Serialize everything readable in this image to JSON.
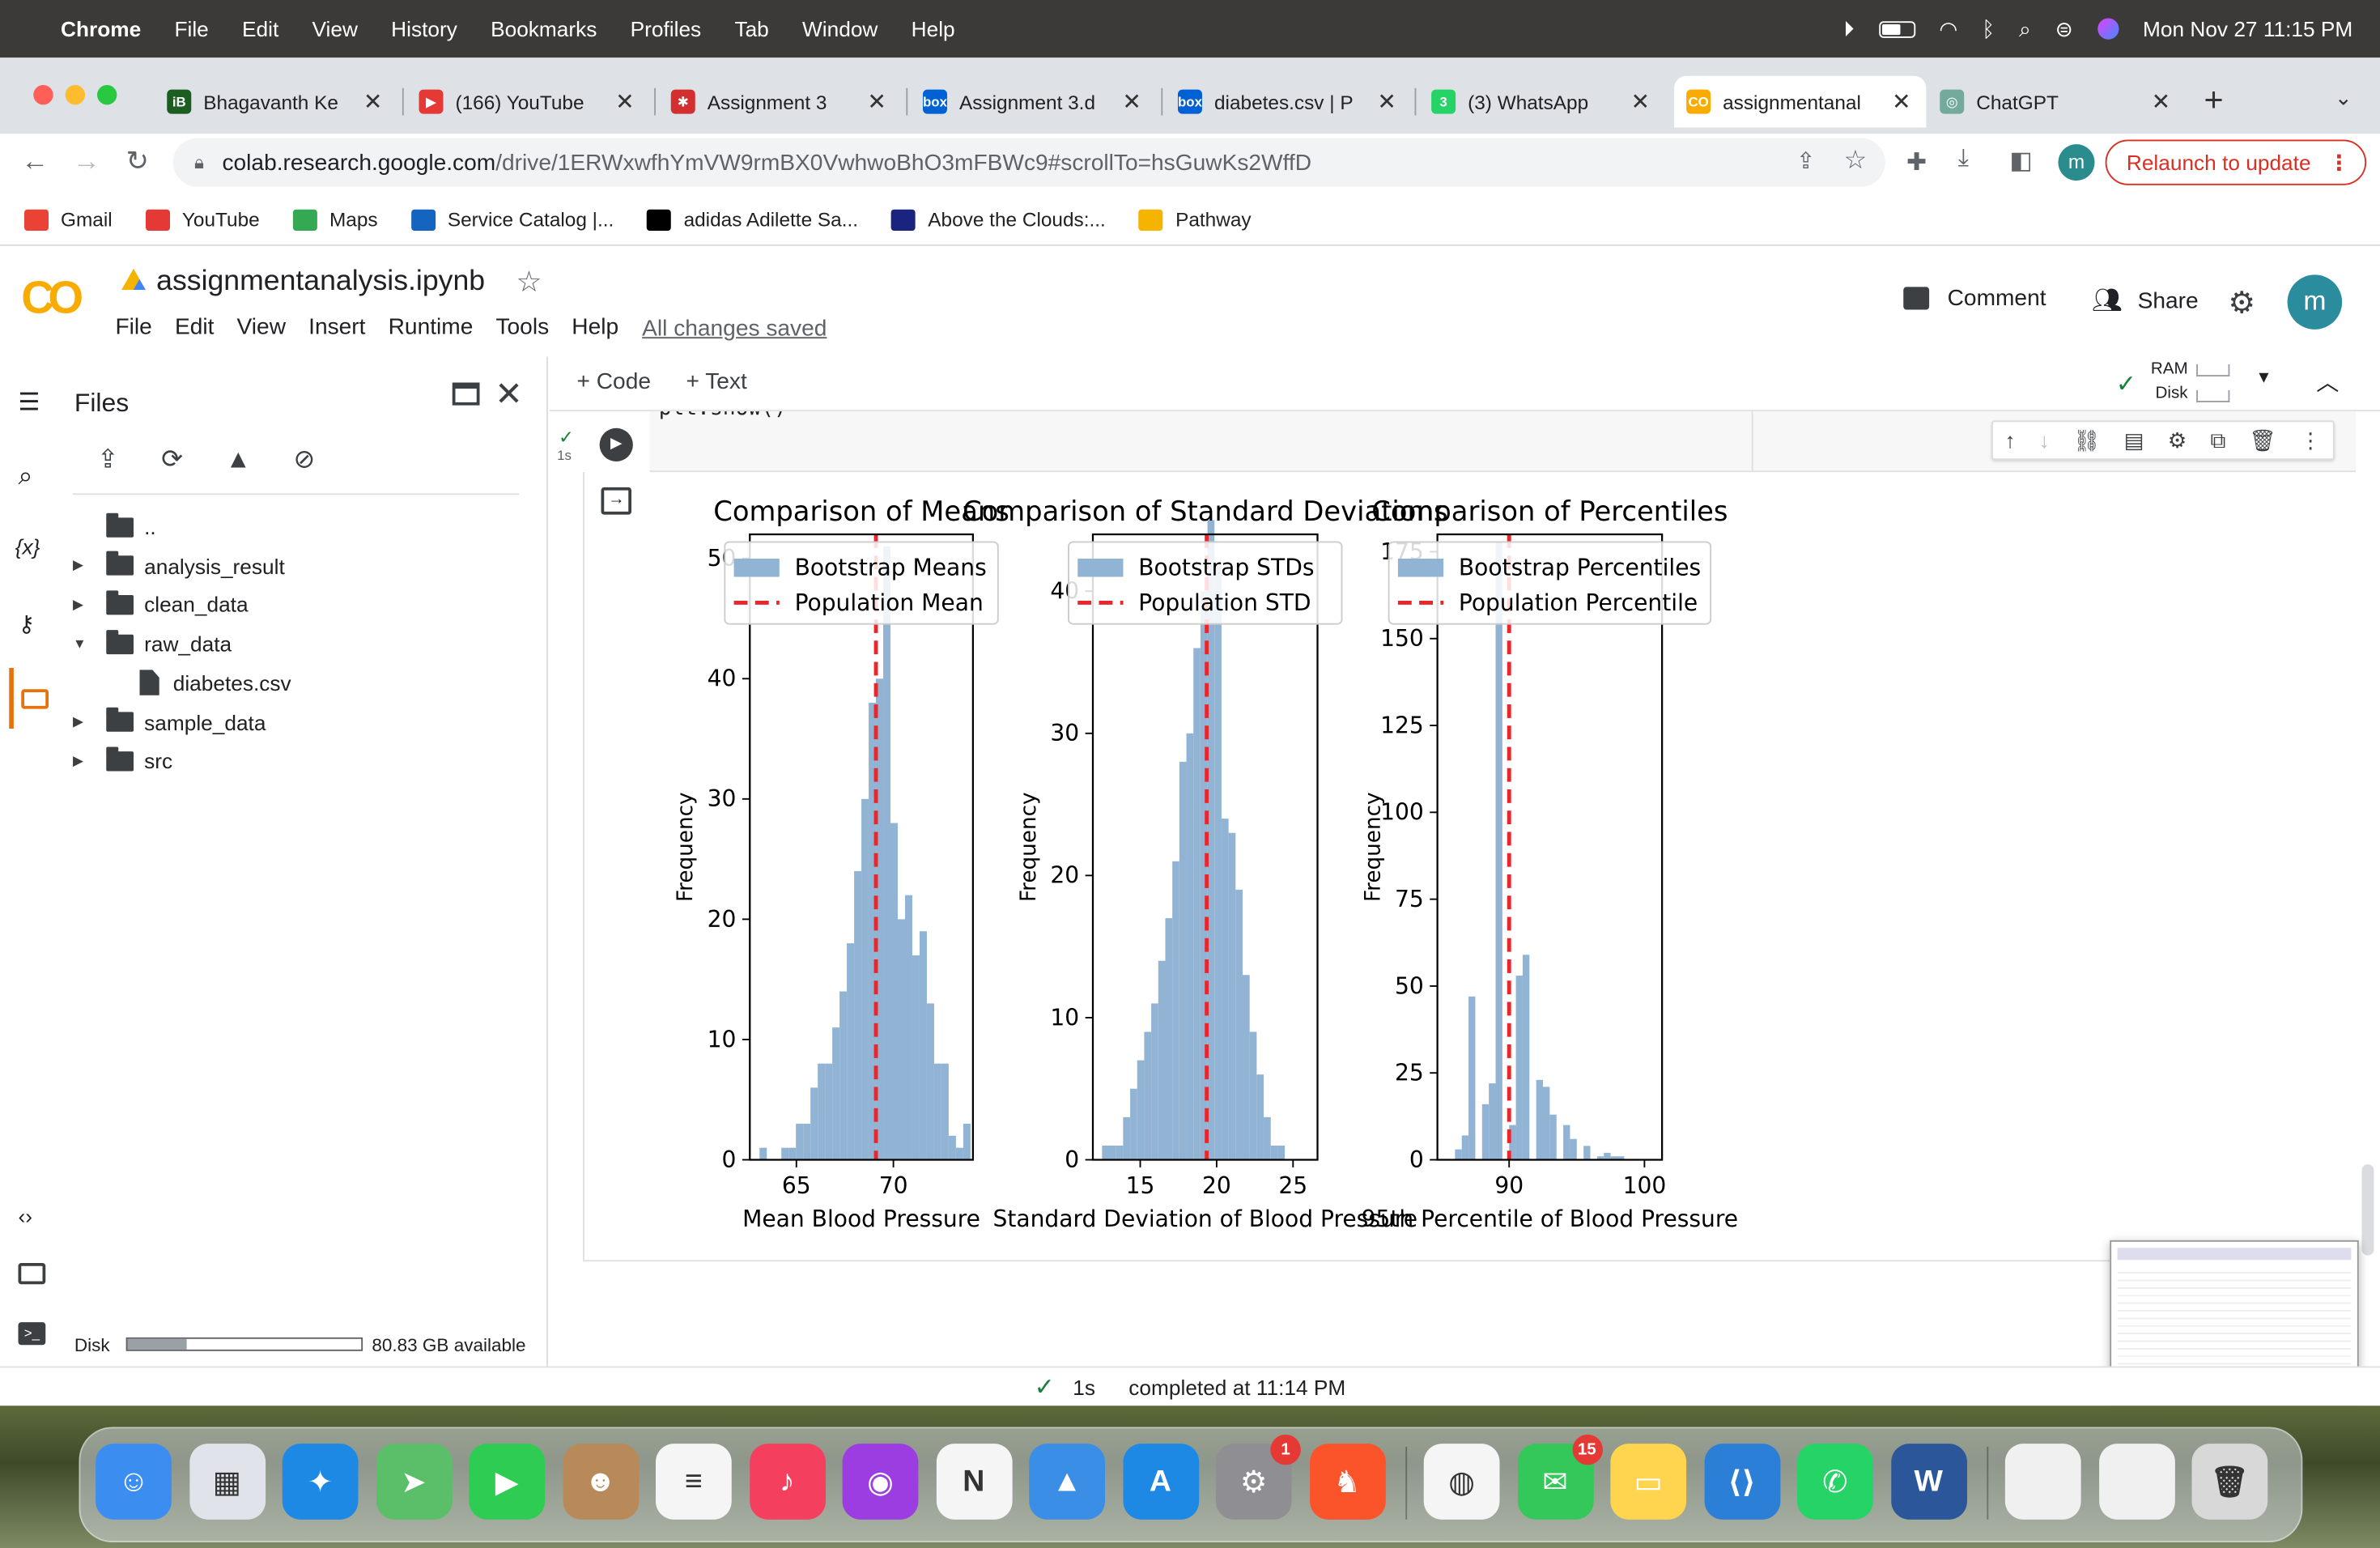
{
  "menubar": {
    "app": "Chrome",
    "items": [
      "File",
      "Edit",
      "View",
      "History",
      "Bookmarks",
      "Profiles",
      "Tab",
      "Window",
      "Help"
    ],
    "datetime": "Mon Nov 27  11:15 PM"
  },
  "tabs": [
    {
      "label": "Bhagavanth Ke",
      "color": "#1b5e20",
      "glyph": "iB"
    },
    {
      "label": "(166) YouTube",
      "color": "#e53935",
      "glyph": "▶"
    },
    {
      "label": "Assignment 3",
      "color": "#d32f2f",
      "glyph": "✱"
    },
    {
      "label": "Assignment 3.d",
      "color": "#0061d5",
      "glyph": "box"
    },
    {
      "label": "diabetes.csv | P",
      "color": "#0061d5",
      "glyph": "box"
    },
    {
      "label": "(3) WhatsApp",
      "color": "#25d366",
      "glyph": "3"
    },
    {
      "label": "assignmentanal",
      "color": "#f9ab00",
      "glyph": "CO"
    },
    {
      "label": "ChatGPT",
      "color": "#74aa9c",
      "glyph": "◎"
    }
  ],
  "address": {
    "host": "colab.research.google.com",
    "path": "/drive/1ERWxwfhYmVW9rmBX0VwhwoBhO3mFBWc9#scrollTo=hsGuwKs2WffD",
    "relaunch": "Relaunch to update",
    "avatar": "m"
  },
  "bookmarks": [
    {
      "label": "Gmail",
      "color": "#ea4335"
    },
    {
      "label": "YouTube",
      "color": "#e53935"
    },
    {
      "label": "Maps",
      "color": "#34a853"
    },
    {
      "label": "Service Catalog |...",
      "color": "#1565c0"
    },
    {
      "label": "adidas Adilette Sa...",
      "color": "#000000"
    },
    {
      "label": "Above the Clouds:...",
      "color": "#1a237e"
    },
    {
      "label": "Pathway",
      "color": "#f4b400"
    }
  ],
  "colab": {
    "title": "assignmentanalysis.ipynb",
    "menu": [
      "File",
      "Edit",
      "View",
      "Insert",
      "Runtime",
      "Tools",
      "Help"
    ],
    "saved": "All changes saved",
    "comment": "Comment",
    "share": "Share",
    "avatar": "m",
    "add_code": "+ Code",
    "add_text": "+ Text",
    "ram": "RAM",
    "disk": "Disk",
    "exec_time": "1s",
    "cell_code_fragment": "plt.show()"
  },
  "files": {
    "title": "Files",
    "tree": [
      {
        "name": "..",
        "type": "up",
        "depth": 0
      },
      {
        "name": "analysis_result",
        "type": "folder",
        "depth": 0,
        "open": false
      },
      {
        "name": "clean_data",
        "type": "folder",
        "depth": 0,
        "open": false
      },
      {
        "name": "raw_data",
        "type": "folder",
        "depth": 0,
        "open": true
      },
      {
        "name": "diabetes.csv",
        "type": "file",
        "depth": 1
      },
      {
        "name": "sample_data",
        "type": "folder",
        "depth": 0,
        "open": false
      },
      {
        "name": "src",
        "type": "folder",
        "depth": 0,
        "open": false
      }
    ],
    "disk_label": "Disk",
    "disk_available": "80.83 GB available",
    "disk_fraction": 0.25
  },
  "status": {
    "time": "1s",
    "completed": "completed at 11:14 PM"
  },
  "chart_data": [
    {
      "type": "bar",
      "title": "Comparison of Means",
      "xlabel": "Mean Blood Pressure",
      "ylabel": "Frequency",
      "xlim": [
        62.6,
        74.1
      ],
      "ylim": [
        0,
        52
      ],
      "xticks": [
        65,
        70
      ],
      "yticks": [
        0,
        10,
        20,
        30,
        40,
        50
      ],
      "bin_start": 63.1,
      "bin_width": 0.375,
      "values": [
        1,
        0,
        0,
        1,
        1,
        3,
        3,
        6,
        8,
        8,
        11,
        14,
        18,
        24,
        30,
        38,
        40,
        51,
        28,
        20,
        22,
        17,
        19,
        13,
        8,
        8,
        2,
        1,
        3,
        0
      ],
      "reference": {
        "name": "Population Mean",
        "value": 69.1
      },
      "legend": [
        "Bootstrap Means",
        "Population Mean"
      ],
      "legend_position": "upper center",
      "color": "#92b4d4",
      "ref_color": "#e8262b"
    },
    {
      "type": "bar",
      "title": "Comparison of Standard Deviations",
      "xlabel": "Standard Deviation of Blood Pressure",
      "ylabel": "Frequency",
      "xlim": [
        11.9,
        26.6
      ],
      "ylim": [
        0,
        44
      ],
      "xticks": [
        15,
        20,
        25
      ],
      "yticks": [
        0,
        10,
        20,
        30,
        40
      ],
      "bin_start": 12.5,
      "bin_width": 0.46,
      "values": [
        1,
        1,
        1,
        3,
        5,
        7,
        9,
        11,
        14,
        17,
        21,
        28,
        30,
        36,
        40,
        45,
        42,
        24,
        23,
        19,
        13,
        9,
        6,
        3,
        1,
        1
      ],
      "reference": {
        "name": "Population STD",
        "value": 19.35
      },
      "legend": [
        "Bootstrap STDs",
        "Population STD"
      ],
      "legend_position": "upper center",
      "color": "#92b4d4",
      "ref_color": "#e8262b"
    },
    {
      "type": "bar",
      "title": "Comparison of Percentiles",
      "xlabel": "95th Percentile of Blood Pressure",
      "ylabel": "Frequency",
      "xlim": [
        84.7,
        101.3
      ],
      "ylim": [
        0,
        180
      ],
      "xticks": [
        90,
        100
      ],
      "yticks": [
        0,
        25,
        50,
        75,
        100,
        125,
        150,
        175
      ],
      "bin_start": 86.0,
      "bin_width": 0.5,
      "values": [
        3,
        7,
        47,
        0,
        16,
        22,
        178,
        0,
        10,
        53,
        59,
        0,
        23,
        21,
        13,
        0,
        10,
        6,
        0,
        4,
        0,
        1,
        2,
        1,
        1
      ],
      "reference": {
        "name": "Population Percentile",
        "value": 90.0
      },
      "legend": [
        "Bootstrap Percentiles",
        "Population Percentile"
      ],
      "legend_position": "upper center",
      "color": "#92b4d4",
      "ref_color": "#e8262b"
    }
  ],
  "dock": [
    {
      "name": "finder",
      "color": "#3b8ef0",
      "glyph": "☺"
    },
    {
      "name": "launchpad",
      "color": "#e0e4ea",
      "glyph": "▦"
    },
    {
      "name": "safari",
      "color": "#1e88e5",
      "glyph": "✦"
    },
    {
      "name": "maps",
      "color": "#5bbf6a",
      "glyph": "➤"
    },
    {
      "name": "facetime",
      "color": "#2ecc52",
      "glyph": "▶"
    },
    {
      "name": "contacts",
      "color": "#b88a5a",
      "glyph": "☻"
    },
    {
      "name": "reminders",
      "color": "#f5f5f5",
      "glyph": "≡"
    },
    {
      "name": "music",
      "color": "#f43f5e",
      "glyph": "♪"
    },
    {
      "name": "podcasts",
      "color": "#9b3de0",
      "glyph": "◉"
    },
    {
      "name": "news",
      "color": "#f5f5f5",
      "glyph": "N"
    },
    {
      "name": "keynote",
      "color": "#3a8ee6",
      "glyph": "▲"
    },
    {
      "name": "app-store",
      "color": "#1e88e5",
      "glyph": "A"
    },
    {
      "name": "system-settings",
      "color": "#8e8e93",
      "glyph": "⚙",
      "badge": "1"
    },
    {
      "name": "brave",
      "color": "#fb542b",
      "glyph": "♞"
    },
    {
      "name": "chrome",
      "color": "#f5f5f5",
      "glyph": "◍"
    },
    {
      "name": "messages",
      "color": "#34c759",
      "glyph": "✉",
      "badge": "15"
    },
    {
      "name": "notes",
      "color": "#ffd54f",
      "glyph": "▭"
    },
    {
      "name": "vscode",
      "color": "#2b7fd6",
      "glyph": "⟨⟩"
    },
    {
      "name": "whatsapp",
      "color": "#25d366",
      "glyph": "✆"
    },
    {
      "name": "word",
      "color": "#2b579a",
      "glyph": "W"
    },
    {
      "name": "preview-thumb-1",
      "color": "#f0f0f0",
      "glyph": ""
    },
    {
      "name": "preview-thumb-2",
      "color": "#f0f0f0",
      "glyph": ""
    },
    {
      "name": "trash",
      "color": "#d8d8d8",
      "glyph": "🗑"
    }
  ]
}
